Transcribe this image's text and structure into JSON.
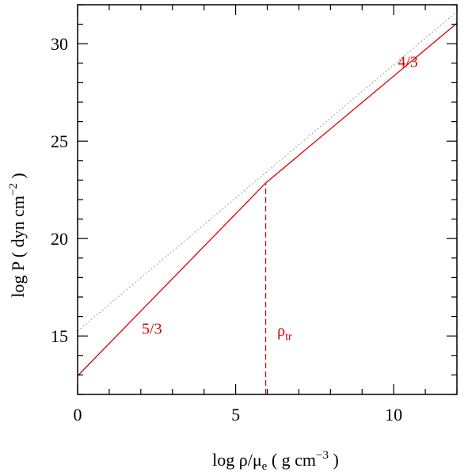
{
  "chart_data": {
    "type": "line",
    "xlabel": {
      "prefix": "log ρ/μ",
      "sub": "e",
      "mid": " ( g cm",
      "sup": "−3",
      "suffix": " )"
    },
    "ylabel": {
      "prefix": "log P ( dyn cm",
      "sup": "−2",
      "suffix": " )"
    },
    "xlim": [
      0,
      12
    ],
    "ylim": [
      12,
      32
    ],
    "xticks": [
      0,
      5,
      10
    ],
    "xtick_labels": [
      "0",
      "5",
      "10"
    ],
    "yticks": [
      15,
      20,
      25,
      30
    ],
    "ytick_labels": [
      "15",
      "20",
      "25",
      "30"
    ],
    "x_minor_step": 1,
    "y_minor_step": 1,
    "grid": false,
    "series": [
      {
        "style": "solid",
        "color": "#e00000",
        "x": [
          0,
          5.95,
          12
        ],
        "y": [
          12.95,
          22.85,
          31.05
        ]
      },
      {
        "style": "dotted",
        "color": "#888888",
        "x": [
          0,
          12
        ],
        "y": [
          15.25,
          31.65
        ]
      }
    ],
    "verticals": [
      {
        "style": "dashed",
        "color": "#e00000",
        "x": 5.95,
        "y_from": 12,
        "y_to": 22.85
      }
    ],
    "annotations": [
      {
        "text": "5/3",
        "x": 2.35,
        "y": 15.1,
        "color": "#e00000"
      },
      {
        "text": "4/3",
        "x": 10.45,
        "y": 28.8,
        "color": "#e00000"
      },
      {
        "text": "ρ",
        "sub": "tr",
        "x": 6.55,
        "y": 15.0,
        "color": "#e00000"
      }
    ]
  }
}
